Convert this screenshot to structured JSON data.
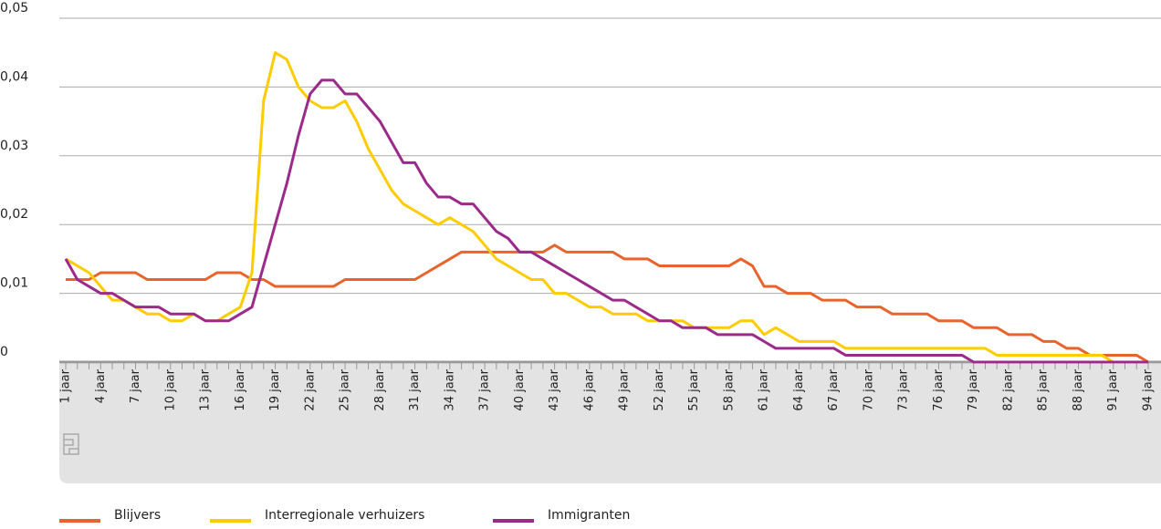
{
  "chart_data": {
    "type": "line",
    "categories": [
      "1 jaar",
      null,
      null,
      "4 jaar",
      null,
      null,
      "7 jaar",
      null,
      null,
      "10 jaar",
      null,
      null,
      "13 jaar",
      null,
      null,
      "16 jaar",
      null,
      null,
      "19 jaar",
      null,
      null,
      "22 jaar",
      null,
      null,
      "25 jaar",
      null,
      null,
      "28 jaar",
      null,
      null,
      "31 jaar",
      null,
      null,
      "34 jaar",
      null,
      null,
      "37 jaar",
      null,
      null,
      "40 jaar",
      null,
      null,
      "43 jaar",
      null,
      null,
      "46 jaar",
      null,
      null,
      "49 jaar",
      null,
      null,
      "52 jaar",
      null,
      null,
      "55 jaar",
      null,
      null,
      "58 jaar",
      null,
      null,
      "61 jaar",
      null,
      null,
      "64 jaar",
      null,
      null,
      "67 jaar",
      null,
      null,
      "70 jaar",
      null,
      null,
      "73 jaar",
      null,
      null,
      "76 jaar",
      null,
      null,
      "79 jaar",
      null,
      null,
      "82 jaar",
      null,
      null,
      "85 jaar",
      null,
      null,
      "88 jaar",
      null,
      null,
      "91 jaar",
      null,
      null,
      "94 jaar"
    ],
    "series": [
      {
        "name": "Blijvers",
        "color": "#e9642c",
        "values": [
          0.012,
          0.012,
          0.012,
          0.013,
          0.013,
          0.013,
          0.013,
          0.012,
          0.012,
          0.012,
          0.012,
          0.012,
          0.012,
          0.013,
          0.013,
          0.013,
          0.012,
          0.012,
          0.011,
          0.011,
          0.011,
          0.011,
          0.011,
          0.011,
          0.012,
          0.012,
          0.012,
          0.012,
          0.012,
          0.012,
          0.012,
          0.013,
          0.014,
          0.015,
          0.016,
          0.016,
          0.016,
          0.016,
          0.016,
          0.016,
          0.016,
          0.016,
          0.017,
          0.016,
          0.016,
          0.016,
          0.016,
          0.016,
          0.015,
          0.015,
          0.015,
          0.014,
          0.014,
          0.014,
          0.014,
          0.014,
          0.014,
          0.014,
          0.015,
          0.014,
          0.011,
          0.011,
          0.01,
          0.01,
          0.01,
          0.009,
          0.009,
          0.009,
          0.008,
          0.008,
          0.008,
          0.007,
          0.007,
          0.007,
          0.007,
          0.006,
          0.006,
          0.006,
          0.005,
          0.005,
          0.005,
          0.004,
          0.004,
          0.004,
          0.003,
          0.003,
          0.002,
          0.002,
          0.001,
          0.001,
          0.001,
          0.001,
          0.001,
          0
        ]
      },
      {
        "name": "Interregionale verhuizers",
        "color": "#ffcc00",
        "values": [
          0.015,
          0.014,
          0.013,
          0.011,
          0.009,
          0.009,
          0.008,
          0.007,
          0.007,
          0.006,
          0.006,
          0.007,
          0.006,
          0.006,
          0.007,
          0.008,
          0.013,
          0.038,
          0.045,
          0.044,
          0.04,
          0.038,
          0.037,
          0.037,
          0.038,
          0.035,
          0.031,
          0.028,
          0.025,
          0.023,
          0.022,
          0.021,
          0.02,
          0.021,
          0.02,
          0.019,
          0.017,
          0.015,
          0.014,
          0.013,
          0.012,
          0.012,
          0.01,
          0.01,
          0.009,
          0.008,
          0.008,
          0.007,
          0.007,
          0.007,
          0.006,
          0.006,
          0.006,
          0.006,
          0.005,
          0.005,
          0.005,
          0.005,
          0.006,
          0.006,
          0.004,
          0.005,
          0.004,
          0.003,
          0.003,
          0.003,
          0.003,
          0.002,
          0.002,
          0.002,
          0.002,
          0.002,
          0.002,
          0.002,
          0.002,
          0.002,
          0.002,
          0.002,
          0.002,
          0.002,
          0.001,
          0.001,
          0.001,
          0.001,
          0.001,
          0.001,
          0.001,
          0.001,
          0.001,
          0.001,
          0,
          0,
          0,
          0
        ]
      },
      {
        "name": "Immigranten",
        "color": "#9b2a8a",
        "values": [
          0.015,
          0.012,
          0.011,
          0.01,
          0.01,
          0.009,
          0.008,
          0.008,
          0.008,
          0.007,
          0.007,
          0.007,
          0.006,
          0.006,
          0.006,
          0.007,
          0.008,
          0.014,
          0.02,
          0.026,
          0.033,
          0.039,
          0.041,
          0.041,
          0.039,
          0.039,
          0.037,
          0.035,
          0.032,
          0.029,
          0.029,
          0.026,
          0.024,
          0.024,
          0.023,
          0.023,
          0.021,
          0.019,
          0.018,
          0.016,
          0.016,
          0.015,
          0.014,
          0.013,
          0.012,
          0.011,
          0.01,
          0.009,
          0.009,
          0.008,
          0.007,
          0.006,
          0.006,
          0.005,
          0.005,
          0.005,
          0.004,
          0.004,
          0.004,
          0.004,
          0.003,
          0.002,
          0.002,
          0.002,
          0.002,
          0.002,
          0.002,
          0.001,
          0.001,
          0.001,
          0.001,
          0.001,
          0.001,
          0.001,
          0.001,
          0.001,
          0.001,
          0.001,
          0,
          0,
          0,
          0,
          0,
          0,
          0,
          0,
          0,
          0,
          0,
          0,
          0,
          0,
          0,
          0
        ]
      }
    ],
    "ylim": [
      0,
      0.05
    ],
    "yticks": [
      0,
      {
        "value": 0.01,
        "label": "0,01"
      },
      {
        "value": 0.02,
        "label": "0,02"
      },
      {
        "value": 0.03,
        "label": "0,03"
      },
      {
        "value": 0.04,
        "label": "0,04"
      },
      {
        "value": 0.05,
        "label": "0,05"
      }
    ],
    "grid": true
  }
}
